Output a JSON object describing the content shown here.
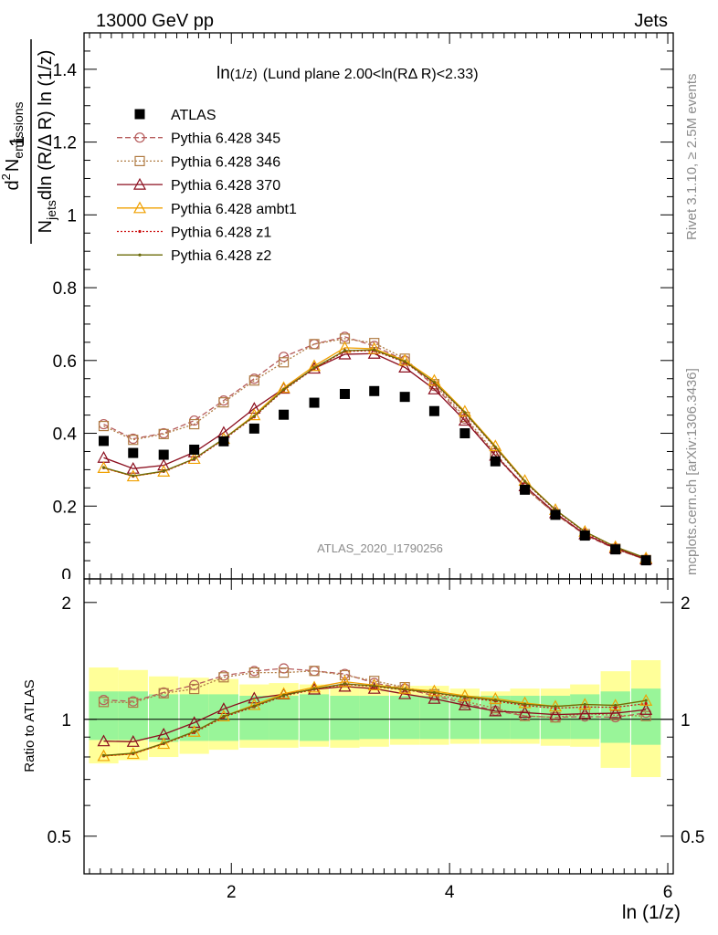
{
  "header": {
    "left": "13000 GeV pp",
    "right": "Jets"
  },
  "plot_title": {
    "main": "ln",
    "main_sub": "(1/z)",
    "detail": "(Lund plane 2.00<ln(RΔ R)<2.33)"
  },
  "ylabel_main": {
    "num": "1",
    "den_lead": "N",
    "den_sub": "jets",
    "den_rest": "dln (R/Δ R) ln (1/z)",
    "num2_lead": "d",
    "num2_sup": "2",
    "num2_N": "N",
    "num2_sub": "emissions"
  },
  "ylabel_ratio": "Ratio to ATLAS",
  "xlabel": "ln (1/z)",
  "side_labels": {
    "rivet": "Rivet 3.1.10, ≥ 2.5M events",
    "mcplots": "mcplots.cern.ch [arXiv:1306.3436]"
  },
  "watermark": "ATLAS_2020_I1790256",
  "ticks": {
    "main_y": [
      "0.2",
      "0.4",
      "0.6",
      "0.8",
      "1",
      "1.2",
      "1.4"
    ],
    "main_y_partial": "0",
    "ratio_left": [
      "0.5",
      "1",
      "2"
    ],
    "ratio_right": [
      "0.5",
      "1",
      "2"
    ],
    "x": [
      "2",
      "4",
      "6"
    ]
  },
  "colors": {
    "data": "#000000",
    "band_inner": "#99f599",
    "band_outer": "#ffff99",
    "side_text": "#8c8c8c"
  },
  "chart_data": {
    "type": "scatter",
    "xlim": [
      0.65,
      6.05
    ],
    "main_ylim": [
      0,
      1.5
    ],
    "ratio_ylim": [
      0.4,
      2.3
    ],
    "ratio_scale": "log",
    "grid": false,
    "legend_placement": "top-left",
    "x": [
      0.83,
      1.1,
      1.38,
      1.66,
      1.93,
      2.21,
      2.48,
      2.76,
      3.04,
      3.31,
      3.59,
      3.86,
      4.14,
      4.42,
      4.69,
      4.97,
      5.24,
      5.52,
      5.8
    ],
    "atlas": {
      "name": "ATLAS",
      "values": [
        0.379,
        0.346,
        0.341,
        0.355,
        0.378,
        0.413,
        0.451,
        0.484,
        0.508,
        0.516,
        0.5,
        0.461,
        0.4,
        0.323,
        0.245,
        0.176,
        0.119,
        0.081,
        0.051
      ],
      "band_inner": [
        [
          0.885,
          1.18
        ],
        [
          0.885,
          1.18
        ],
        [
          0.875,
          1.16
        ],
        [
          0.88,
          1.16
        ],
        [
          0.88,
          1.16
        ],
        [
          0.885,
          1.15
        ],
        [
          0.885,
          1.15
        ],
        [
          0.88,
          1.16
        ],
        [
          0.885,
          1.15
        ],
        [
          0.89,
          1.15
        ],
        [
          0.89,
          1.15
        ],
        [
          0.89,
          1.15
        ],
        [
          0.89,
          1.15
        ],
        [
          0.89,
          1.15
        ],
        [
          0.89,
          1.15
        ],
        [
          0.89,
          1.15
        ],
        [
          0.89,
          1.16
        ],
        [
          0.87,
          1.18
        ],
        [
          0.86,
          1.2
        ]
      ],
      "band_outer": [
        [
          0.77,
          1.36
        ],
        [
          0.785,
          1.34
        ],
        [
          0.8,
          1.29
        ],
        [
          0.815,
          1.28
        ],
        [
          0.835,
          1.27
        ],
        [
          0.845,
          1.23
        ],
        [
          0.845,
          1.24
        ],
        [
          0.85,
          1.23
        ],
        [
          0.845,
          1.22
        ],
        [
          0.85,
          1.23
        ],
        [
          0.86,
          1.22
        ],
        [
          0.86,
          1.22
        ],
        [
          0.865,
          1.2
        ],
        [
          0.865,
          1.18
        ],
        [
          0.865,
          1.2
        ],
        [
          0.855,
          1.2
        ],
        [
          0.85,
          1.23
        ],
        [
          0.75,
          1.33
        ],
        [
          0.71,
          1.42
        ]
      ]
    },
    "series": [
      {
        "name": "Pythia 6.428 345",
        "color": "#b65c5c",
        "marker": "circle",
        "dash": "6,3",
        "values": [
          0.425,
          0.385,
          0.4,
          0.435,
          0.49,
          0.55,
          0.61,
          0.645,
          0.665,
          0.64,
          0.6,
          0.53,
          0.44,
          0.34,
          0.25,
          0.178,
          0.121,
          0.082,
          0.053
        ]
      },
      {
        "name": "Pythia 6.428 346",
        "color": "#b07c44",
        "marker": "square",
        "dash": "2,2",
        "values": [
          0.42,
          0.382,
          0.398,
          0.425,
          0.485,
          0.545,
          0.595,
          0.645,
          0.66,
          0.648,
          0.605,
          0.535,
          0.445,
          0.345,
          0.25,
          0.178,
          0.123,
          0.083,
          0.052
        ]
      },
      {
        "name": "Pythia 6.428 370",
        "color": "#8b0e1e",
        "marker": "triangle",
        "dash": "",
        "values": [
          0.333,
          0.303,
          0.312,
          0.348,
          0.402,
          0.468,
          0.523,
          0.578,
          0.617,
          0.619,
          0.581,
          0.521,
          0.435,
          0.339,
          0.255,
          0.181,
          0.123,
          0.084,
          0.054
        ]
      },
      {
        "name": "Pythia 6.428 ambt1",
        "color": "#f0a000",
        "marker": "triangle",
        "dash": "",
        "values": [
          0.305,
          0.282,
          0.295,
          0.33,
          0.385,
          0.45,
          0.525,
          0.585,
          0.635,
          0.632,
          0.6,
          0.545,
          0.46,
          0.365,
          0.27,
          0.19,
          0.13,
          0.088,
          0.057
        ]
      },
      {
        "name": "Pythia 6.428 z1",
        "color": "#cc1010",
        "marker": "dot",
        "dash": "2,2",
        "values": [
          0.305,
          0.282,
          0.295,
          0.328,
          0.383,
          0.445,
          0.518,
          0.578,
          0.625,
          0.627,
          0.595,
          0.538,
          0.455,
          0.36,
          0.266,
          0.188,
          0.128,
          0.087,
          0.056
        ]
      },
      {
        "name": "Pythia 6.428 z2",
        "color": "#6b6b0a",
        "marker": "dot",
        "dash": "",
        "values": [
          0.306,
          0.283,
          0.296,
          0.33,
          0.385,
          0.447,
          0.52,
          0.58,
          0.627,
          0.629,
          0.597,
          0.54,
          0.457,
          0.362,
          0.268,
          0.19,
          0.13,
          0.088,
          0.057
        ]
      }
    ]
  }
}
